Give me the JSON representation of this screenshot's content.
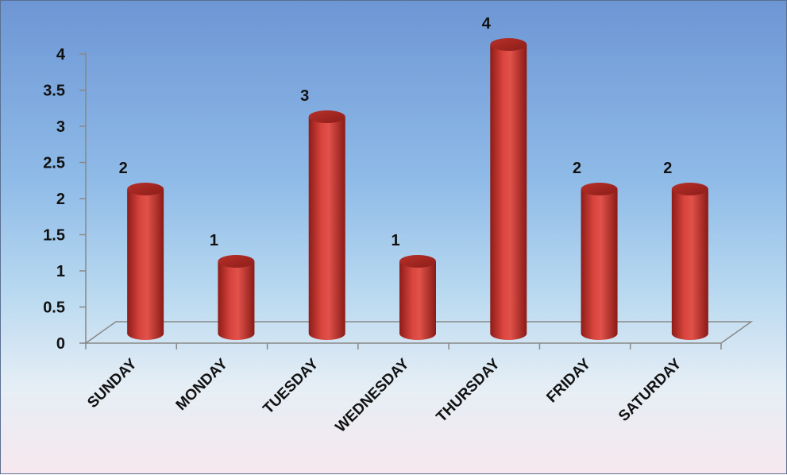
{
  "chart_data": {
    "type": "bar",
    "title": "",
    "xlabel": "",
    "ylabel": "",
    "categories": [
      "SUNDAY",
      "MONDAY",
      "TUESDAY",
      "WEDNESDAY",
      "THURSDAY",
      "FRIDAY",
      "SATURDAY"
    ],
    "values": [
      2,
      1,
      3,
      1,
      4,
      2,
      2
    ],
    "ylim": [
      0,
      4
    ],
    "yticks": [
      "0",
      "0.5",
      "1",
      "1.5",
      "2",
      "2.5",
      "3",
      "3.5",
      "4"
    ],
    "data_labels": [
      "2",
      "1",
      "3",
      "1",
      "4",
      "2",
      "2"
    ],
    "grid": false,
    "legend": "none",
    "style": "3d-cylinder",
    "bar_color": "#c0312b",
    "background_top": "#6d96d4",
    "background_bottom": "#f6e8ee"
  }
}
